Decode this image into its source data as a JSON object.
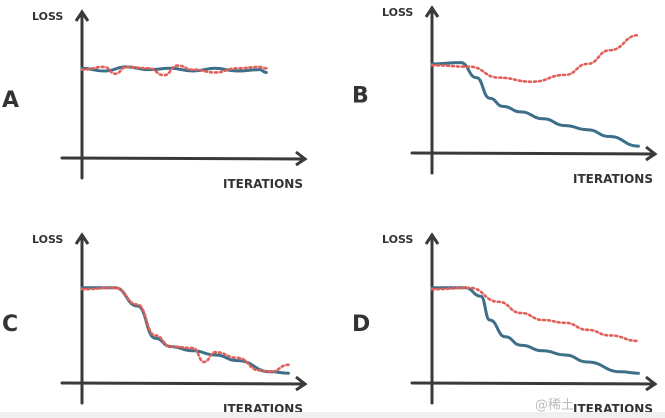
{
  "chart_data": [
    {
      "type": "line",
      "panel_label": "A",
      "ylabel": "LOSS",
      "xlabel": "ITERATIONS",
      "xlim": [
        0,
        10
      ],
      "ylim": [
        0,
        10
      ],
      "grid": false,
      "series": [
        {
          "style": "solid",
          "color": "#3e6f89",
          "x": [
            0,
            1,
            2,
            3,
            4,
            5,
            6,
            7,
            8,
            8.3
          ],
          "y": [
            6.5,
            6.3,
            6.6,
            6.4,
            6.5,
            6.3,
            6.5,
            6.3,
            6.4,
            6.2
          ]
        },
        {
          "style": "dashed",
          "color": "#e0605a",
          "x": [
            0,
            1,
            1.5,
            2,
            3,
            3.7,
            4.3,
            5,
            6,
            7,
            8,
            8.3
          ],
          "y": [
            6.4,
            6.6,
            6.1,
            6.6,
            6.5,
            6.0,
            6.7,
            6.4,
            6.2,
            6.5,
            6.6,
            6.5
          ]
        }
      ]
    },
    {
      "type": "line",
      "panel_label": "B",
      "ylabel": "LOSS",
      "xlabel": "ITERATIONS",
      "xlim": [
        0,
        10
      ],
      "ylim": [
        0,
        10
      ],
      "grid": false,
      "series": [
        {
          "style": "solid",
          "color": "#3e6f89",
          "x": [
            0,
            1.3,
            2.0,
            2.6,
            3.2,
            4,
            5,
            6,
            7,
            8,
            9.3
          ],
          "y": [
            6.5,
            6.6,
            5.5,
            4.0,
            3.4,
            3.0,
            2.5,
            2.0,
            1.7,
            1.2,
            0.5
          ]
        },
        {
          "style": "dashed",
          "color": "#e0605a",
          "x": [
            0,
            1.7,
            3,
            4.5,
            6,
            7,
            8,
            9.3
          ],
          "y": [
            6.4,
            6.3,
            5.5,
            5.2,
            5.7,
            6.5,
            7.5,
            8.6
          ]
        }
      ]
    },
    {
      "type": "line",
      "panel_label": "C",
      "ylabel": "LOSS",
      "xlabel": "ITERATIONS",
      "xlim": [
        0,
        10
      ],
      "ylim": [
        0,
        10
      ],
      "grid": false,
      "series": [
        {
          "style": "solid",
          "color": "#3e6f89",
          "x": [
            0,
            1.5,
            2.5,
            3.3,
            4,
            5,
            6,
            7,
            8.5,
            9.3
          ],
          "y": [
            6.8,
            6.8,
            5.5,
            3.2,
            2.6,
            2.3,
            2.0,
            1.6,
            0.8,
            0.7
          ]
        },
        {
          "style": "dashed",
          "color": "#e0605a",
          "x": [
            0,
            1.5,
            2.5,
            3.3,
            4,
            5,
            5.5,
            6,
            7,
            8,
            8.5,
            9.3
          ],
          "y": [
            6.7,
            6.8,
            5.6,
            3.4,
            2.6,
            2.5,
            1.5,
            2.2,
            1.8,
            0.9,
            0.8,
            1.3
          ]
        }
      ]
    },
    {
      "type": "line",
      "panel_label": "D",
      "ylabel": "LOSS",
      "xlabel": "ITERATIONS",
      "xlim": [
        0,
        10
      ],
      "ylim": [
        0,
        10
      ],
      "grid": false,
      "series": [
        {
          "style": "solid",
          "color": "#3e6f89",
          "x": [
            0,
            1.5,
            2.2,
            2.6,
            3.3,
            4,
            5,
            6,
            7,
            8.5,
            9.3
          ],
          "y": [
            6.8,
            6.8,
            6.2,
            4.5,
            3.3,
            2.7,
            2.3,
            2.0,
            1.5,
            0.8,
            0.7
          ]
        },
        {
          "style": "dashed",
          "color": "#e0605a",
          "x": [
            0,
            1.7,
            3,
            4,
            5,
            6,
            7,
            8,
            9.3
          ],
          "y": [
            6.7,
            6.8,
            5.8,
            5.0,
            4.5,
            4.3,
            3.8,
            3.4,
            3.0
          ]
        }
      ]
    }
  ],
  "watermark": "@稀土"
}
